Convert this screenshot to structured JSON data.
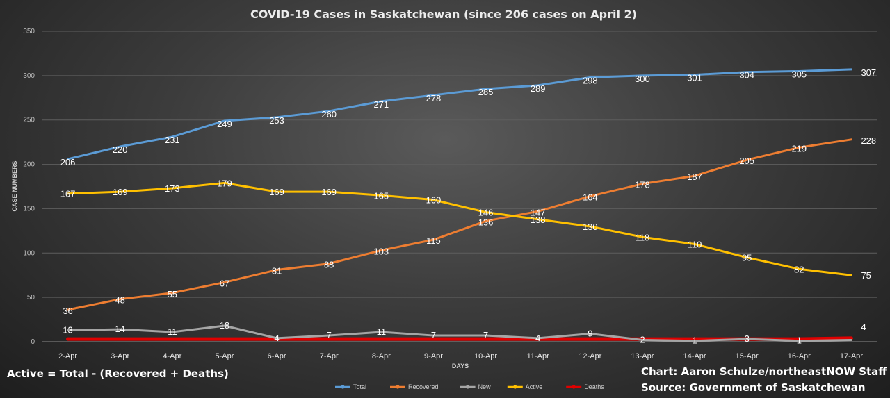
{
  "chart_data": {
    "type": "line",
    "title": "COVID-19 Cases in Saskatchewan (since 206 cases on April 2)",
    "xlabel": "DAYS",
    "ylabel": "CASE NUMBERS",
    "ylim": [
      0,
      350
    ],
    "yticks": [
      "0",
      "50",
      "100",
      "150",
      "200",
      "250",
      "300",
      "350"
    ],
    "grid": true,
    "legend_position": "bottom",
    "categories": [
      "2-Apr",
      "3-Apr",
      "4-Apr",
      "5-Apr",
      "6-Apr",
      "7-Apr",
      "8-Apr",
      "9-Apr",
      "10-Apr",
      "11-Apr",
      "12-Apr",
      "13-Apr",
      "14-Apr",
      "15-Apr",
      "16-Apr",
      "17-Apr"
    ],
    "series": [
      {
        "name": "Total",
        "color": "#5b9bd5",
        "values": [
          206,
          220,
          231,
          249,
          253,
          260,
          271,
          278,
          285,
          289,
          298,
          300,
          301,
          304,
          305,
          307
        ],
        "labels": [
          "206",
          "220",
          "231",
          "249",
          "253",
          "260",
          "271",
          "278",
          "285",
          "289",
          "298",
          "300",
          "301",
          "304",
          "305",
          "307"
        ]
      },
      {
        "name": "Recovered",
        "color": "#ed7d31",
        "values": [
          36,
          48,
          55,
          67,
          81,
          88,
          103,
          115,
          136,
          147,
          164,
          178,
          187,
          205,
          219,
          228
        ],
        "labels": [
          "36",
          "48",
          "55",
          "67",
          "81",
          "88",
          "103",
          "115",
          "136",
          "147",
          "164",
          "178",
          "187",
          "205",
          "219",
          "228"
        ]
      },
      {
        "name": "New",
        "color": "#a5a5a5",
        "values": [
          13,
          14,
          11,
          18,
          4,
          7,
          11,
          7,
          7,
          4,
          9,
          2,
          1,
          3,
          1,
          2
        ],
        "labels": [
          "13",
          "14",
          "11",
          "18",
          "4",
          "7",
          "11",
          "7",
          "7",
          "4",
          "9",
          "2",
          "1",
          "3",
          "1",
          ""
        ]
      },
      {
        "name": "Active",
        "color": "#ffc000",
        "values": [
          167,
          169,
          173,
          179,
          169,
          169,
          165,
          160,
          146,
          138,
          130,
          118,
          110,
          95,
          82,
          75
        ],
        "labels": [
          "167",
          "169",
          "173",
          "179",
          "169",
          "169",
          "165",
          "160",
          "146",
          "138",
          "130",
          "118",
          "110",
          "95",
          "82",
          "75"
        ]
      },
      {
        "name": "Deaths",
        "color": "#e00000",
        "values": [
          3,
          3,
          3,
          3,
          3,
          3,
          3,
          3,
          3,
          3,
          3,
          3,
          3,
          3,
          3,
          4
        ],
        "labels": [
          "",
          "",
          "",
          "",
          "",
          "",
          "",
          "",
          "",
          "",
          "",
          "",
          "",
          "",
          "",
          "4"
        ]
      }
    ],
    "annotations": [
      "Active = Total - (Recovered + Deaths)",
      "Chart: Aaron Schulze/northeastNOW Staff",
      "Source: Government of Saskatchewan"
    ]
  }
}
